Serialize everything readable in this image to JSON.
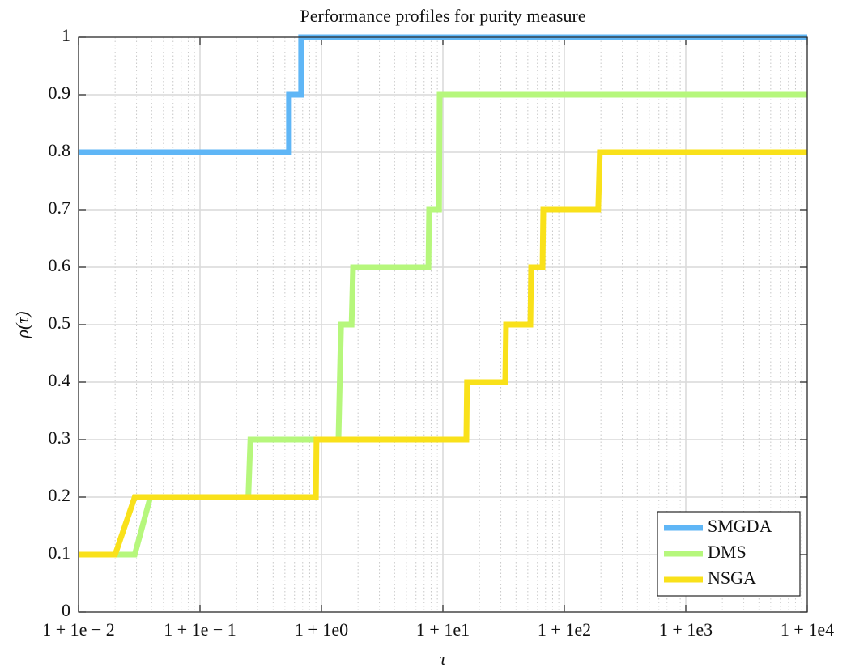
{
  "chart_data": {
    "type": "line",
    "title": "Performance profiles for purity measure",
    "xlabel": "τ",
    "ylabel": "ρ(τ)",
    "xscale": "log",
    "xlim": [
      0.01,
      10000
    ],
    "xticks": [
      {
        "value": 0.01,
        "label": "1 + 1e − 2"
      },
      {
        "value": 0.1,
        "label": "1 + 1e − 1"
      },
      {
        "value": 1,
        "label": "1 + 1e0"
      },
      {
        "value": 10,
        "label": "1 + 1e1"
      },
      {
        "value": 100,
        "label": "1 + 1e2"
      },
      {
        "value": 1000,
        "label": "1 + 1e3"
      },
      {
        "value": 10000,
        "label": "1 + 1e4"
      }
    ],
    "ylim": [
      0,
      1
    ],
    "yticks": [
      0,
      0.1,
      0.2,
      0.3,
      0.4,
      0.5,
      0.6,
      0.7,
      0.8,
      0.9,
      1
    ],
    "grid": true,
    "minor_grid": true,
    "legend": "southeast",
    "series": [
      {
        "name": "SMGDA",
        "color": "#5fb6f6",
        "x": [
          0.01,
          0.54,
          0.54,
          0.68,
          0.68,
          10000
        ],
        "values": [
          0.8,
          0.8,
          0.9,
          0.9,
          1.0,
          1.0
        ]
      },
      {
        "name": "DMS",
        "color": "#b6f77c",
        "x": [
          0.01,
          0.029,
          0.039,
          0.25,
          0.26,
          1.38,
          1.45,
          1.77,
          1.82,
          7.6,
          7.7,
          9.3,
          9.4,
          10000
        ],
        "values": [
          0.1,
          0.1,
          0.2,
          0.2,
          0.3,
          0.3,
          0.5,
          0.5,
          0.6,
          0.6,
          0.7,
          0.7,
          0.9,
          0.9
        ]
      },
      {
        "name": "NSGA",
        "color": "#f9e11a",
        "x": [
          0.01,
          0.02,
          0.029,
          0.9,
          0.91,
          15.6,
          15.8,
          32.6,
          33.1,
          52.5,
          53.3,
          66.1,
          67.1,
          190,
          196,
          10000
        ],
        "values": [
          0.1,
          0.1,
          0.2,
          0.2,
          0.3,
          0.3,
          0.4,
          0.4,
          0.5,
          0.5,
          0.6,
          0.6,
          0.7,
          0.7,
          0.8,
          0.8
        ]
      }
    ]
  }
}
